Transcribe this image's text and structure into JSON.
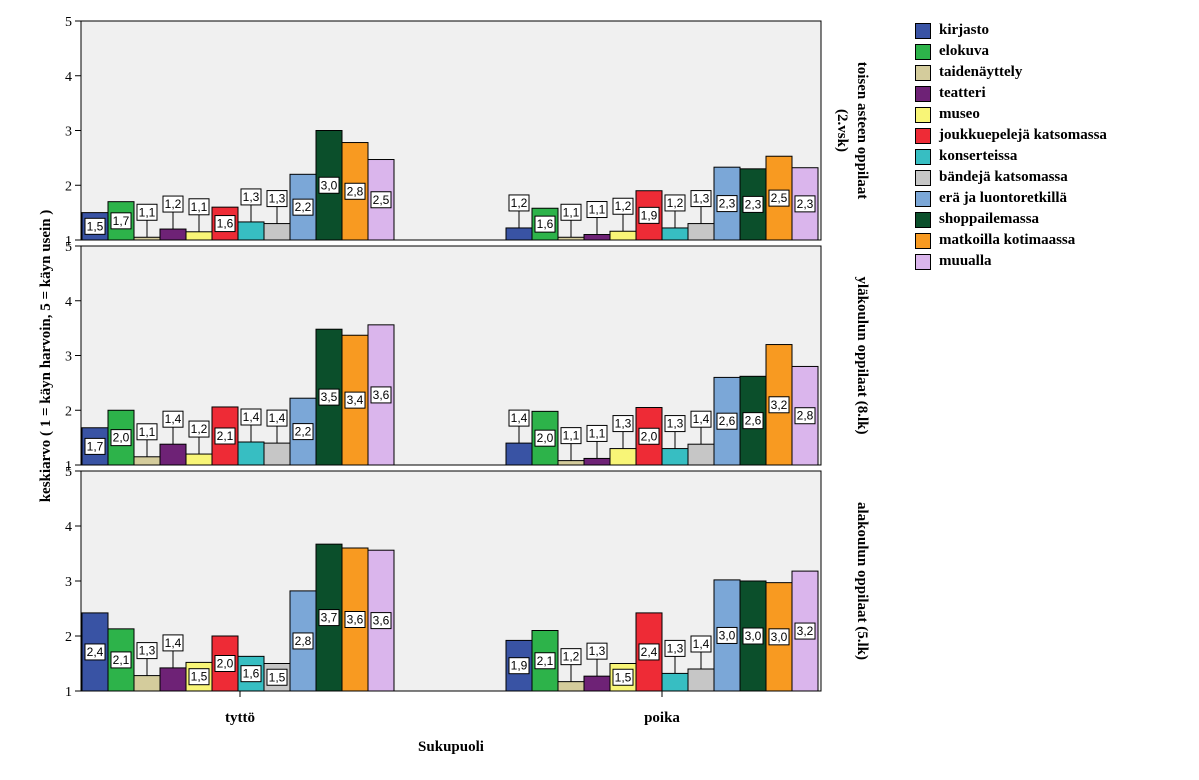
{
  "chart_data": {
    "type": "bar",
    "title": "",
    "xlabel": "Sukupuoli",
    "ylabel": "keskiarvo ( 1 = käyn harvoin, 5 = käyn usein )",
    "ylim": [
      1,
      5
    ],
    "yticks": [
      "1",
      "2",
      "3",
      "4",
      "5"
    ],
    "categories": [
      "tyttö",
      "poika"
    ],
    "legend_position": "right",
    "series_names": [
      "kirjasto",
      "elokuva",
      "taidenäyttely",
      "teatteri",
      "museo",
      "joukkuepelejä katsomassa",
      "konserteissa",
      "bändejä katsomassa",
      "erä ja luontoretkillä",
      "shoppailemassa",
      "matkoilla kotimaassa",
      "muualla"
    ],
    "series_colors": [
      "#3953a4",
      "#2db34a",
      "#d4cc9c",
      "#6e2276",
      "#f8f577",
      "#ee2b36",
      "#37bec2",
      "#c6c6c6",
      "#7ba7d7",
      "#0b4f2b",
      "#f89a21",
      "#dab5ec"
    ],
    "panels": [
      {
        "label": "toisen asteen oppilaat (2.vsk)",
        "label_lines": [
          "toisen asteen oppilaat",
          "(2.vsk)"
        ],
        "groups": [
          {
            "category": "tyttö",
            "values": [
              1.5,
              1.7,
              1.05,
              1.2,
              1.15,
              1.6,
              1.33,
              1.3,
              2.2,
              3.0,
              2.78,
              2.47
            ],
            "labels": [
              "1,5",
              "1,7",
              "1,1",
              "1,2",
              "1,1",
              "1,6",
              "1,3",
              "1,3",
              "2,2",
              "3,0",
              "2,8",
              "2,5"
            ]
          },
          {
            "category": "poika",
            "values": [
              1.22,
              1.58,
              1.05,
              1.1,
              1.16,
              1.9,
              1.22,
              1.3,
              2.33,
              2.3,
              2.53,
              2.32
            ],
            "labels": [
              "1,2",
              "1,6",
              "1,1",
              "1,1",
              "1,2",
              "1,9",
              "1,2",
              "1,3",
              "2,3",
              "2,3",
              "2,5",
              "2,3"
            ]
          }
        ]
      },
      {
        "label": "yläkoulun oppilaat (8.lk)",
        "label_lines": [
          "yläkoulun oppilaat (8.lk)"
        ],
        "groups": [
          {
            "category": "tyttö",
            "values": [
              1.68,
              2.0,
              1.15,
              1.38,
              1.2,
              2.06,
              1.42,
              1.4,
              2.22,
              3.48,
              3.37,
              3.56
            ],
            "labels": [
              "1,7",
              "2,0",
              "1,1",
              "1,4",
              "1,2",
              "2,1",
              "1,4",
              "1,4",
              "2,2",
              "3,5",
              "3,4",
              "3,6"
            ]
          },
          {
            "category": "poika",
            "values": [
              1.4,
              1.98,
              1.08,
              1.12,
              1.3,
              2.05,
              1.3,
              1.38,
              2.6,
              2.62,
              3.2,
              2.8
            ],
            "labels": [
              "1,4",
              "2,0",
              "1,1",
              "1,1",
              "1,3",
              "2,0",
              "1,3",
              "1,4",
              "2,6",
              "2,6",
              "3,2",
              "2,8"
            ]
          }
        ]
      },
      {
        "label": "alakoulun oppilaat (5.lk)",
        "label_lines": [
          "alakoulun oppilaat (5.lk)"
        ],
        "groups": [
          {
            "category": "tyttö",
            "values": [
              2.42,
              2.13,
              1.28,
              1.42,
              1.52,
              2.0,
              1.63,
              1.5,
              2.82,
              3.67,
              3.6,
              3.56
            ],
            "labels": [
              "2,4",
              "2,1",
              "1,3",
              "1,4",
              "1,5",
              "2,0",
              "1,6",
              "1,5",
              "2,8",
              "3,7",
              "3,6",
              "3,6"
            ]
          },
          {
            "category": "poika",
            "values": [
              1.92,
              2.1,
              1.17,
              1.27,
              1.5,
              2.42,
              1.32,
              1.4,
              3.02,
              3.0,
              2.97,
              3.18
            ],
            "labels": [
              "1,9",
              "2,1",
              "1,2",
              "1,3",
              "1,5",
              "2,4",
              "1,3",
              "1,4",
              "3,0",
              "3,0",
              "3,0",
              "3,2"
            ]
          }
        ]
      }
    ]
  }
}
